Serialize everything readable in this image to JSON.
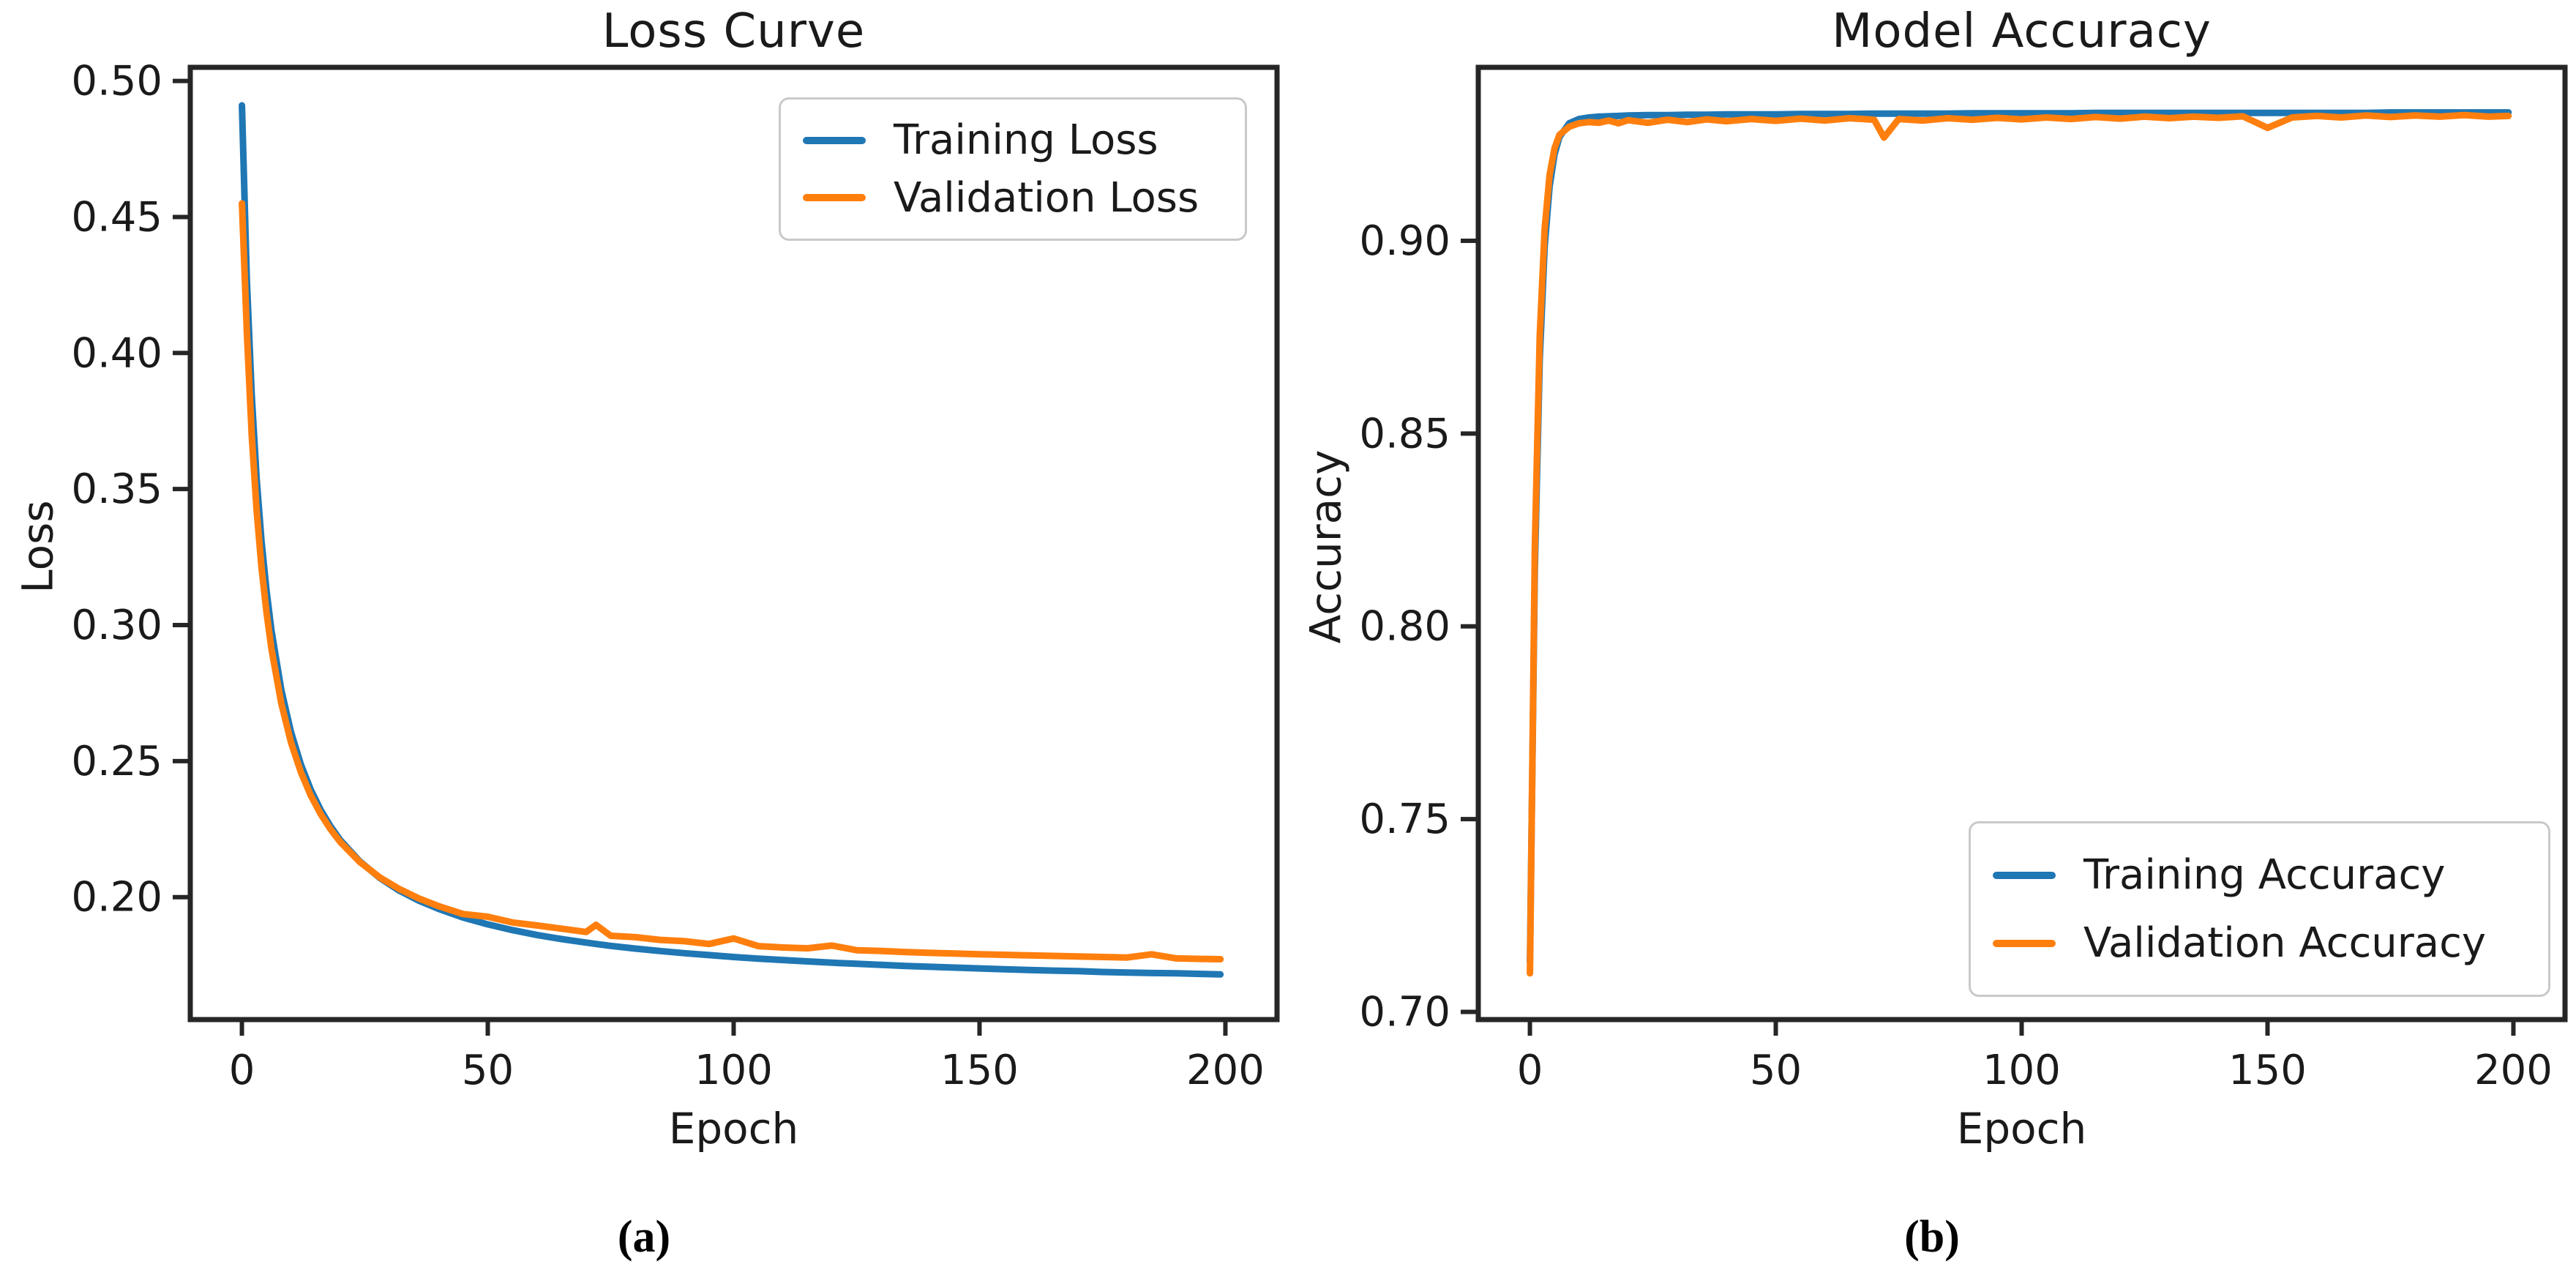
{
  "figure": {
    "background": "#ffffff",
    "axis_color": "#262626",
    "text_color": "#1a1a1a"
  },
  "chart_data": [
    {
      "type": "line",
      "title": "Loss Curve",
      "xlabel": "Epoch",
      "ylabel": "Loss",
      "caption": "(a)",
      "grid": false,
      "legend_position": "upper right",
      "xlim": [
        -10.5,
        210.5
      ],
      "ylim": [
        0.155,
        0.505
      ],
      "xticks": [
        0,
        50,
        100,
        150,
        200
      ],
      "yticks": [
        {
          "v": 0.2,
          "label": "0.20"
        },
        {
          "v": 0.25,
          "label": "0.25"
        },
        {
          "v": 0.3,
          "label": "0.30"
        },
        {
          "v": 0.35,
          "label": "0.35"
        },
        {
          "v": 0.4,
          "label": "0.40"
        },
        {
          "v": 0.45,
          "label": "0.45"
        },
        {
          "v": 0.5,
          "label": "0.50"
        }
      ],
      "x": [
        0,
        1,
        2,
        3,
        4,
        5,
        6,
        8,
        10,
        12,
        14,
        16,
        18,
        20,
        24,
        28,
        32,
        36,
        40,
        45,
        50,
        55,
        60,
        65,
        70,
        72,
        75,
        80,
        85,
        90,
        95,
        100,
        105,
        110,
        115,
        120,
        125,
        130,
        135,
        140,
        145,
        150,
        155,
        160,
        165,
        170,
        175,
        180,
        185,
        190,
        195,
        199
      ],
      "series": [
        {
          "name": "Training Loss",
          "color": "#1f77b4",
          "values": [
            0.491,
            0.427,
            0.3845,
            0.3538,
            0.3307,
            0.3127,
            0.2981,
            0.2763,
            0.2606,
            0.2487,
            0.2395,
            0.2321,
            0.2261,
            0.221,
            0.2131,
            0.2071,
            0.2024,
            0.1987,
            0.1957,
            0.1925,
            0.19,
            0.1879,
            0.1861,
            0.1846,
            0.1833,
            0.1828,
            0.1821,
            0.1811,
            0.1802,
            0.1794,
            0.1787,
            0.178,
            0.1774,
            0.1769,
            0.1764,
            0.1759,
            0.1755,
            0.1751,
            0.1747,
            0.1744,
            0.1741,
            0.1738,
            0.1735,
            0.1732,
            0.173,
            0.1728,
            0.1725,
            0.1723,
            0.1721,
            0.172,
            0.1718,
            0.1716
          ]
        },
        {
          "name": "Validation Loss",
          "color": "#ff7f0e",
          "values": [
            0.455,
            0.4076,
            0.3696,
            0.342,
            0.321,
            0.3046,
            0.2913,
            0.2713,
            0.2568,
            0.2459,
            0.2374,
            0.2306,
            0.225,
            0.2203,
            0.2129,
            0.2073,
            0.203,
            0.1995,
            0.1967,
            0.1938,
            0.1928,
            0.1907,
            0.1896,
            0.1884,
            0.1872,
            0.1898,
            0.1858,
            0.1853,
            0.1843,
            0.1838,
            0.1828,
            0.1848,
            0.182,
            0.1815,
            0.1812,
            0.1822,
            0.1805,
            0.1802,
            0.1798,
            0.1795,
            0.1793,
            0.179,
            0.1788,
            0.1786,
            0.1784,
            0.1782,
            0.178,
            0.1778,
            0.179,
            0.1775,
            0.1773,
            0.1772
          ]
        }
      ]
    },
    {
      "type": "line",
      "title": "Model Accuracy",
      "xlabel": "Epoch",
      "ylabel": "Accuracy",
      "caption": "(b)",
      "grid": false,
      "legend_position": "lower right",
      "xlim": [
        -10.5,
        210.5
      ],
      "ylim": [
        0.698,
        0.945
      ],
      "xticks": [
        0,
        50,
        100,
        150,
        200
      ],
      "yticks": [
        {
          "v": 0.7,
          "label": "0.70"
        },
        {
          "v": 0.75,
          "label": "0.75"
        },
        {
          "v": 0.8,
          "label": "0.80"
        },
        {
          "v": 0.85,
          "label": "0.85"
        },
        {
          "v": 0.9,
          "label": "0.90"
        }
      ],
      "x": [
        0,
        1,
        2,
        3,
        4,
        5,
        6,
        8,
        10,
        12,
        14,
        16,
        18,
        20,
        24,
        28,
        32,
        36,
        40,
        45,
        50,
        55,
        60,
        65,
        70,
        72,
        75,
        80,
        85,
        90,
        95,
        100,
        105,
        110,
        115,
        120,
        125,
        130,
        135,
        140,
        145,
        150,
        155,
        160,
        165,
        170,
        175,
        180,
        185,
        190,
        195,
        199
      ],
      "series": [
        {
          "name": "Training Accuracy",
          "color": "#1f77b4",
          "values": [
            0.713,
            0.8148,
            0.8693,
            0.8984,
            0.914,
            0.9224,
            0.9269,
            0.9305,
            0.9316,
            0.932,
            0.9322,
            0.9323,
            0.9324,
            0.9325,
            0.9326,
            0.9326,
            0.9327,
            0.9327,
            0.9328,
            0.9328,
            0.9328,
            0.9329,
            0.9329,
            0.9329,
            0.933,
            0.933,
            0.933,
            0.933,
            0.933,
            0.9331,
            0.9331,
            0.9331,
            0.9331,
            0.9331,
            0.9332,
            0.9332,
            0.9332,
            0.9332,
            0.9332,
            0.9332,
            0.9332,
            0.9332,
            0.9332,
            0.9332,
            0.9332,
            0.9332,
            0.9333,
            0.9333,
            0.9333,
            0.9333,
            0.9333,
            0.9333
          ]
        },
        {
          "name": "Validation Accuracy",
          "color": "#ff7f0e",
          "values": [
            0.71,
            0.8205,
            0.8754,
            0.9031,
            0.917,
            0.924,
            0.9275,
            0.9296,
            0.9305,
            0.9308,
            0.9306,
            0.9312,
            0.9305,
            0.9313,
            0.9306,
            0.9314,
            0.9308,
            0.9315,
            0.931,
            0.9316,
            0.9311,
            0.9317,
            0.9312,
            0.9318,
            0.9314,
            0.9268,
            0.9316,
            0.9312,
            0.9318,
            0.9314,
            0.9319,
            0.9315,
            0.932,
            0.9316,
            0.9321,
            0.9317,
            0.9322,
            0.9318,
            0.9322,
            0.9319,
            0.9323,
            0.9293,
            0.932,
            0.9324,
            0.932,
            0.9325,
            0.9321,
            0.9325,
            0.9322,
            0.9326,
            0.9322,
            0.9324
          ]
        }
      ]
    }
  ]
}
